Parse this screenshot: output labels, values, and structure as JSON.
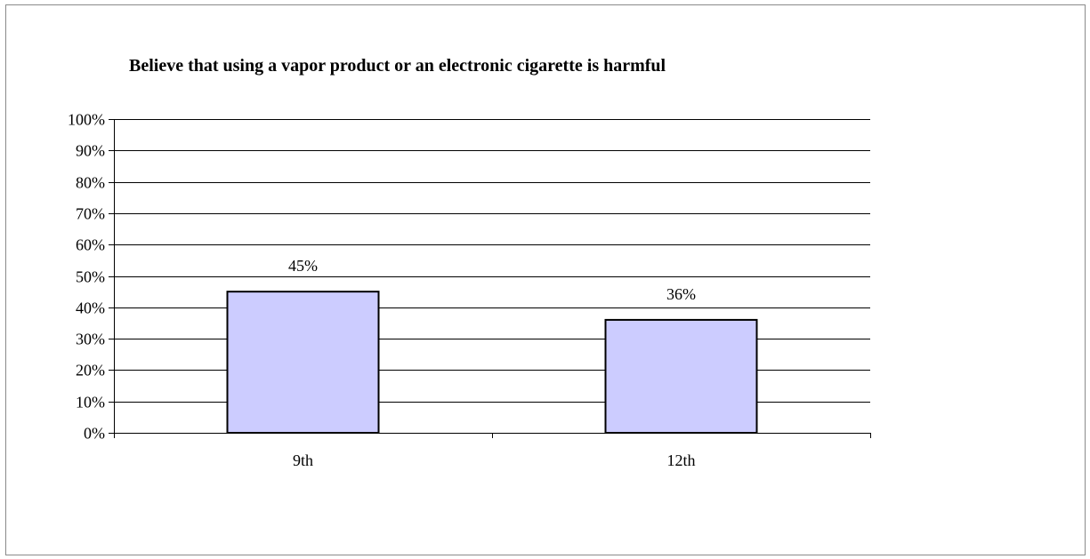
{
  "chart_data": {
    "type": "bar",
    "title": "Believe that using a vapor product or an electronic cigarette is harmful",
    "xlabel": "",
    "ylabel": "",
    "categories": [
      "9th",
      "12th"
    ],
    "series": [
      {
        "values": [
          45,
          36
        ]
      }
    ],
    "data_labels": [
      "45%",
      "36%"
    ],
    "y_tick_labels": [
      "0%",
      "10%",
      "20%",
      "30%",
      "40%",
      "50%",
      "60%",
      "70%",
      "80%",
      "90%",
      "100%"
    ],
    "ylim": [
      0,
      100
    ],
    "y_step": 10,
    "grid": true,
    "legend": "none",
    "colors": {
      "bar_fill": "#ccccff",
      "bar_stroke": "#000000",
      "grid": "#000000",
      "frame": "#8a8a8a"
    }
  }
}
